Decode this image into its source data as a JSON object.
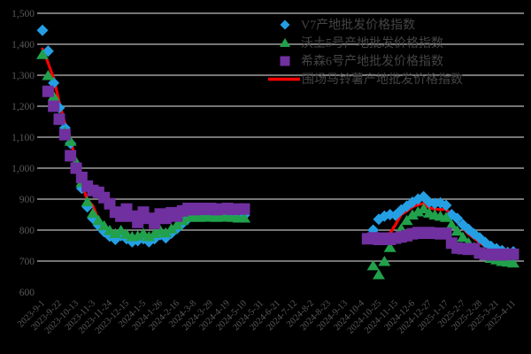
{
  "chart_data": {
    "type": "scatter+line",
    "title": "",
    "background_color": "#000000",
    "grid": "horizontal",
    "grid_color": "#bdbdbd",
    "axis_text_color": "#595959",
    "legend_text_color": "#444444",
    "y_axis": {
      "min": 600,
      "max": 1500,
      "step": 100,
      "tick_labels": [
        "600",
        "700",
        "800",
        "900",
        "1,000",
        "1,100",
        "1,200",
        "1,300",
        "1,400",
        "1,500"
      ],
      "gridlines_from": 700
    },
    "x_axis": {
      "unit": "week",
      "weeks_total": 85,
      "tick_every_weeks": 3,
      "tick_labels": [
        "2023-9-1",
        "2023-9-22",
        "2023-10-13",
        "2023-11-3",
        "2023-11-24",
        "2023-12-15",
        "2024-1-5",
        "2024-1-26",
        "2024-2-16",
        "2024-3-8",
        "2024-3-29",
        "2024-4-19",
        "2024-5-10",
        "2024-5-31",
        "2024-6-21",
        "2024-7-12",
        "2024-8-2",
        "2024-8-23",
        "2024-9-13",
        "2024-10-4",
        "2024-10-25",
        "2024-11-15",
        "2024-12-6",
        "2024-12-27",
        "2025-1-17",
        "2025-2-7",
        "2025-2-28",
        "2025-3-21",
        "2025-4-11"
      ]
    },
    "legend": {
      "position": "top-center",
      "items": [
        {
          "label": "V7产地批发价格指数",
          "marker": "diamond",
          "color": "#249fe4"
        },
        {
          "label": "沃土5号产地批发价格指数",
          "marker": "triangle",
          "color": "#21a14b"
        },
        {
          "label": "希森6号产地批发价格指数",
          "marker": "square",
          "color": "#7030a0"
        },
        {
          "label": "围场马铃薯产地批发价格指数",
          "marker": "line",
          "color": "#ff0000"
        }
      ]
    },
    "series": [
      {
        "name": "围场马铃薯产地批发价格指数",
        "marker": "line",
        "color": "#ff0000",
        "segments": [
          {
            "start_week": 0,
            "values": [
              1385,
              1340,
              1290,
              1212,
              1145,
              1095,
              1015,
              948,
              898,
              878,
              832,
              806,
              788,
              775,
              790,
              780,
              768,
              770,
              778,
              770,
              780,
              792,
              782,
              795,
              810,
              825,
              840,
              848,
              850,
              849,
              850,
              849,
              850,
              850,
              849,
              850,
              848
            ]
          },
          {
            "start_week": 59,
            "values": [
              782,
              784,
              786,
              790,
              818,
              850,
              862,
              875,
              882,
              886,
              872,
              868,
              866,
              868,
              846,
              826,
              806,
              788,
              774,
              760,
              748,
              740,
              735,
              732,
              730,
              730
            ]
          }
        ]
      },
      {
        "name": "V7产地批发价格指数",
        "marker": "diamond",
        "color": "#249fe4",
        "segments": [
          {
            "start_week": 0,
            "values": [
              1445,
              1378,
              1275,
              1195,
              1130,
              1080,
              1005,
              935,
              875,
              838,
              815,
              795,
              780,
              770,
              782,
              772,
              762,
              766,
              772,
              762,
              772,
              785,
              775,
              790,
              805,
              822,
              838,
              848,
              852,
              848,
              852,
              850,
              848,
              852,
              850,
              850,
              848
            ]
          },
          {
            "start_week": 59,
            "values": [
              800,
              835,
              845,
              850,
              848,
              865,
              877,
              890,
              900,
              908,
              890,
              886,
              888,
              880,
              850,
              838,
              818,
              803,
              788,
              775,
              760,
              748,
              740,
              734,
              728,
              730
            ]
          }
        ]
      },
      {
        "name": "沃土5号产地批发价格指数",
        "marker": "triangle",
        "color": "#21a14b",
        "segments": [
          {
            "start_week": 0,
            "values": [
              1368,
              1300,
              1232,
              1160,
              1118,
              1088,
              1020,
              955,
              892,
              855,
              832,
              815,
              800,
              790,
              800,
              788,
              780,
              782,
              790,
              780,
              790,
              800,
              792,
              805,
              818,
              832,
              842,
              845,
              842,
              845,
              843,
              842,
              845,
              843,
              842,
              840,
              840
            ]
          },
          {
            "start_week": 59,
            "values": [
              686,
              657,
              700,
              745,
              775,
              805,
              832,
              850,
              860,
              870,
              856,
              850,
              846,
              842,
              818,
              798,
              778,
              760,
              745,
              730,
              718,
              710,
              705,
              700,
              698,
              695
            ]
          }
        ]
      },
      {
        "name": "希森6号产地批发价格指数",
        "marker": "square",
        "color": "#7030a0",
        "segments": [
          {
            "start_week": 1,
            "values": [
              1248,
              1200,
              1158,
              1108,
              1040,
              1000,
              970,
              942,
              928,
              922,
              905,
              885,
              858,
              845,
              868,
              845,
              825,
              858,
              838,
              822,
              852,
              838,
              856,
              845,
              862,
              870,
              866,
              870,
              867,
              870,
              866,
              868,
              870,
              867,
              868,
              868
            ]
          },
          {
            "start_week": 58,
            "values": [
              772,
              775,
              770,
              774,
              770,
              774,
              778,
              782,
              788,
              792,
              790,
              792,
              790,
              788,
              790,
              758,
              742,
              740,
              738,
              740,
              726,
              722,
              720,
              722,
              720,
              722,
              722
            ]
          }
        ]
      }
    ]
  }
}
